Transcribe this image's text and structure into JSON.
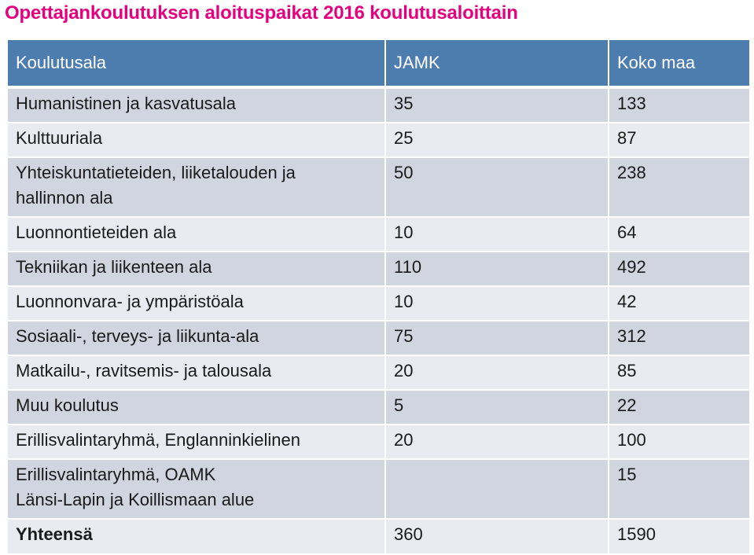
{
  "title": "Opettajankoulutuksen aloituspaikat 2016 koulutusaloittain",
  "table": {
    "headers": [
      "Koulutusala",
      "JAMK",
      "Koko maa"
    ],
    "rows": [
      {
        "label_lines": [
          "Humanistinen ja kasvatusala"
        ],
        "jamk": "35",
        "koko_maa": "133"
      },
      {
        "label_lines": [
          "Kulttuuriala"
        ],
        "jamk": "25",
        "koko_maa": "87"
      },
      {
        "label_lines": [
          "Yhteiskuntatieteiden, liiketalouden ja",
          "hallinnon ala"
        ],
        "jamk": "50",
        "koko_maa": "238"
      },
      {
        "label_lines": [
          "Luonnontieteiden ala"
        ],
        "jamk": "10",
        "koko_maa": "64"
      },
      {
        "label_lines": [
          "Tekniikan ja liikenteen ala"
        ],
        "jamk": "110",
        "koko_maa": "492"
      },
      {
        "label_lines": [
          "Luonnonvara- ja ympäristöala"
        ],
        "jamk": "10",
        "koko_maa": "42"
      },
      {
        "label_lines": [
          "Sosiaali-, terveys- ja liikunta-ala"
        ],
        "jamk": "75",
        "koko_maa": "312"
      },
      {
        "label_lines": [
          "Matkailu-, ravitsemis- ja talousala"
        ],
        "jamk": "20",
        "koko_maa": "85"
      },
      {
        "label_lines": [
          "Muu koulutus"
        ],
        "jamk": "5",
        "koko_maa": "22"
      },
      {
        "label_lines": [
          "Erillisvalintaryhmä, Englanninkielinen"
        ],
        "jamk": "20",
        "koko_maa": "100"
      },
      {
        "label_lines": [
          "Erillisvalintaryhmä, OAMK",
          "Länsi-Lapin ja Koillismaan alue"
        ],
        "jamk": "",
        "koko_maa": "15"
      },
      {
        "label_lines": [
          "Yhteensä"
        ],
        "jamk": "360",
        "koko_maa": "1590"
      }
    ]
  },
  "colors": {
    "title": "#e6007e",
    "header_bg": "#4d7caf",
    "row_dark": "#d0d5e0",
    "row_light": "#e9ebf1"
  }
}
